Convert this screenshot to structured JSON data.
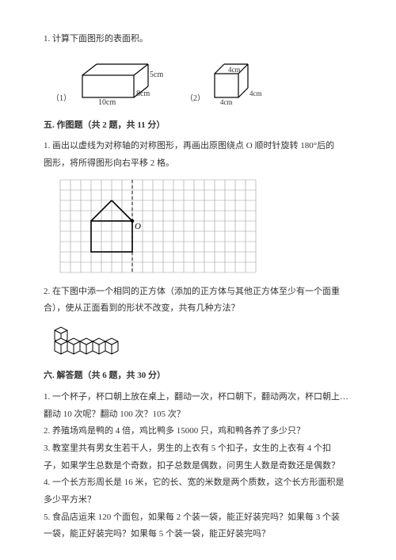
{
  "q1": {
    "text": "1. 计算下面图形的表面积。"
  },
  "fig1": {
    "num1": "（1）",
    "num2": "（2）",
    "box1": {
      "w": "10cm",
      "d": "8cm",
      "h": "5cm"
    },
    "cube": {
      "a": "4cm",
      "b": "4cm",
      "c": "4cm"
    }
  },
  "sec5": {
    "head": "五. 作图题（共 2 题，共 11 分）"
  },
  "s5q1": {
    "l1": "1. 画出以虚线为对称轴的对称图形，再画出原图绕点 O 顺时针旋转 180°后的",
    "l2": "图形，将所得图形向右平移 2 格。"
  },
  "gridfig": {
    "cols": 19,
    "rows": 9,
    "dashCol": 7,
    "house": {
      "baseX": 3,
      "baseY": 4,
      "w": 4,
      "h": 3,
      "roofPeakX": 5,
      "roofPeakY": 2
    },
    "pointLabel": "O",
    "cell": 13
  },
  "s5q2": {
    "l1": "2. 在下图中添一个相同的正方体（添加的正方体与其他正方体至少有一个面重",
    "l2": "合），使从正面看到的形状不改变，共有几种方法？"
  },
  "sec6": {
    "head": "六. 解答题（共 6 题，共 30 分）"
  },
  "s6": {
    "q1l1": "1. 一个杯子，杯口朝上放在桌上，翻动一次，杯口朝下，翻动两次，杯口朝上…",
    "q1l2": "翻动 10 次呢？翻动 100 次？105 次？",
    "q2": "2. 养殖场鸡是鸭的 4 倍，鸡比鸭多 15000 只，鸡和鸭各养了多少只？",
    "q3l1": "3. 教室里共有男女生若干人，男生的上衣有 5 个扣子，女生的上衣有 4 个扣",
    "q3l2": "子，如果学生总数是个奇数，扣子总数是偶数，问男生人数是奇数还是偶数？",
    "q4l1": "4. 一个长方形周长是 16 米，它的长、宽的米数是两个质数，这个长方形面积是",
    "q4l2": "多少平方米？",
    "q5l1": "5. 食品店运来 120 个面包，如果每 2 个装一袋，能正好装完吗？如果每 3 个装",
    "q5l2": "一袋，能正好装完吗？如果每 5 个装一袋，能正好装完吗？"
  },
  "colors": {
    "text": "#333333",
    "line": "#000000",
    "dash": "#555555"
  }
}
